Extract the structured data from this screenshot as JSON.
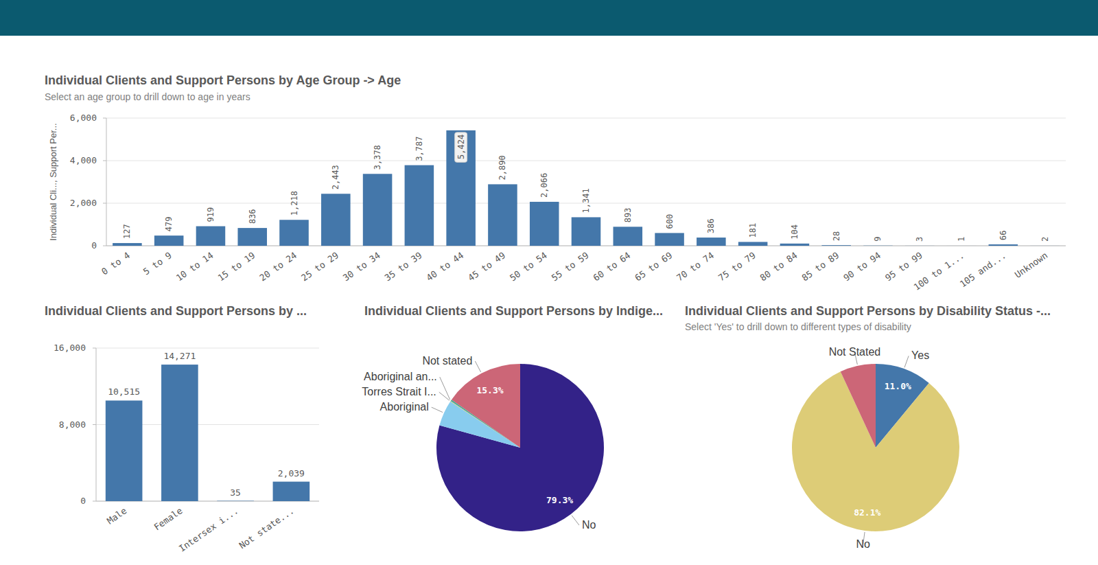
{
  "chart_data": [
    {
      "type": "bar",
      "title": "Individual Clients and Support Persons by Age Group -> Age",
      "subtitle": "Select an age group to drill down to age in years",
      "y_label": "Individual Cli..., Support Per...",
      "categories": [
        "0 to 4",
        "5 to 9",
        "10 to 14",
        "15 to 19",
        "20 to 24",
        "25 to 29",
        "30 to 34",
        "35 to 39",
        "40 to 44",
        "45 to 49",
        "50 to 54",
        "55 to 59",
        "60 to 64",
        "65 to 69",
        "70 to 74",
        "75 to 79",
        "80 to 84",
        "85 to 89",
        "90 to 94",
        "95 to 99",
        "100 to 1...",
        "105 and...",
        "Unknown"
      ],
      "values": [
        127,
        479,
        919,
        836,
        1218,
        2443,
        3378,
        3787,
        5424,
        2890,
        2066,
        1341,
        893,
        600,
        386,
        181,
        104,
        28,
        9,
        3,
        1,
        66,
        2
      ],
      "value_labels": [
        "127",
        "479",
        "919",
        "836",
        "1,218",
        "2,443",
        "3,378",
        "3,787",
        "5,424",
        "2,890",
        "2,066",
        "1,341",
        "893",
        "600",
        "386",
        "181",
        "104",
        "28",
        "9",
        "3",
        "1",
        "66",
        "2"
      ],
      "color": "#4477aa",
      "ylim": [
        0,
        6000
      ],
      "yticks": [
        0,
        {
          "value": 2000,
          "label": "2,000"
        },
        {
          "value": 4000,
          "label": "4,000"
        },
        {
          "value": 6000,
          "label": "6,000"
        }
      ],
      "grid": true,
      "data_labels": true
    },
    {
      "type": "bar",
      "title": "Individual Clients and Support Persons by ...",
      "categories": [
        "Male",
        "Female",
        "Intersex i...",
        "Not state..."
      ],
      "values": [
        10515,
        14271,
        35,
        2039
      ],
      "value_labels": [
        "10,515",
        "14,271",
        "35",
        "2,039"
      ],
      "color": "#4477aa",
      "ylim": [
        0,
        16000
      ],
      "yticks": [
        0,
        {
          "value": 8000,
          "label": "8,000"
        },
        {
          "value": 16000,
          "label": "16,000"
        }
      ],
      "grid": true,
      "data_labels": true
    },
    {
      "type": "pie",
      "title": "Individual Clients and Support Persons by Indige...",
      "categories": [
        "No",
        "Aboriginal",
        "Torres Strait I...",
        "Aboriginal an...",
        "Not stated"
      ],
      "values": [
        79.3,
        5.0,
        0.1,
        0.3,
        15.3
      ],
      "value_labels": [
        "79.3%",
        null,
        null,
        null,
        "15.3%"
      ],
      "colors": [
        "#332288",
        "#88ccee",
        "#ddcc77",
        "#44aa99",
        "#cc6677"
      ],
      "data_labels": true
    },
    {
      "type": "pie",
      "title": "Individual Clients and Support Persons by Disability Status -...",
      "subtitle": "Select 'Yes' to drill down to different types of disability",
      "categories": [
        "Yes",
        "No",
        "Not Stated"
      ],
      "values": [
        11.0,
        82.1,
        6.9
      ],
      "value_labels": [
        "11.0%",
        "82.1%",
        null
      ],
      "colors": [
        "#4477aa",
        "#ddcc77",
        "#cc6677"
      ],
      "data_labels": true
    }
  ]
}
